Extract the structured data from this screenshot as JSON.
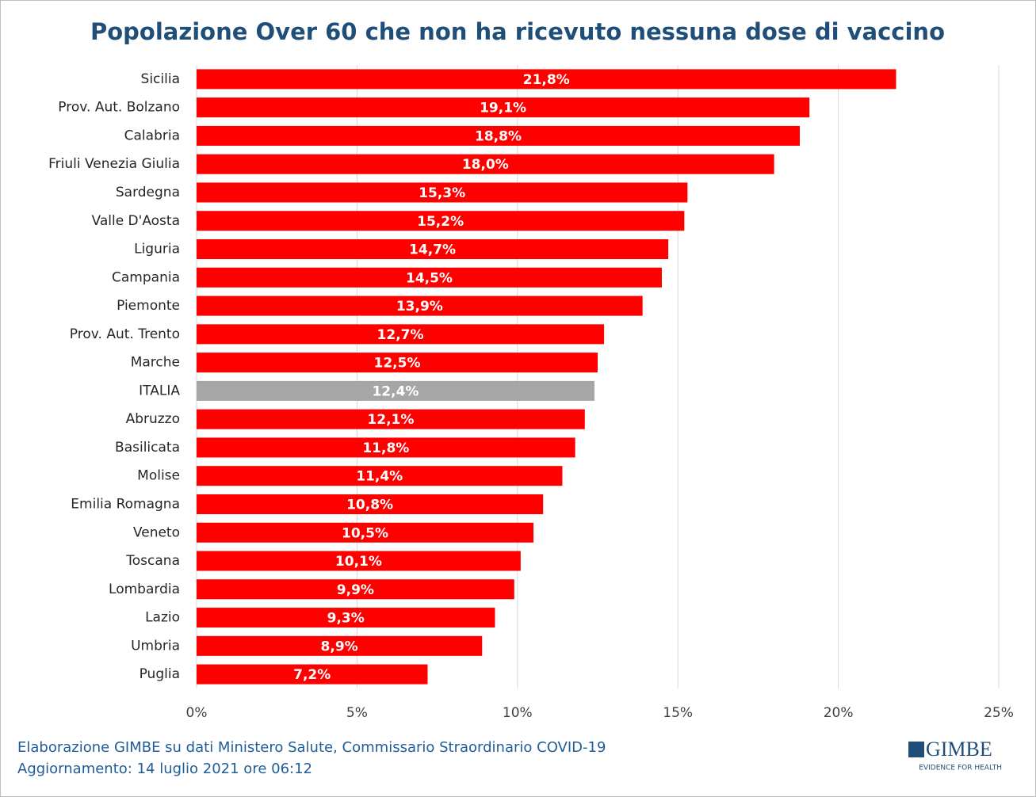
{
  "chart_data": {
    "type": "bar",
    "orientation": "horizontal",
    "title": "Popolazione Over 60 che non ha ricevuto nessuna dose di vaccino",
    "categories": [
      "Sicilia",
      "Prov. Aut. Bolzano",
      "Calabria",
      "Friuli Venezia Giulia",
      "Sardegna",
      "Valle D'Aosta",
      "Liguria",
      "Campania",
      "Piemonte",
      "Prov. Aut. Trento",
      "Marche",
      "ITALIA",
      "Abruzzo",
      "Basilicata",
      "Molise",
      "Emilia Romagna",
      "Veneto",
      "Toscana",
      "Lombardia",
      "Lazio",
      "Umbria",
      "Puglia"
    ],
    "values": [
      21.8,
      19.1,
      18.8,
      18.0,
      15.3,
      15.2,
      14.7,
      14.5,
      13.9,
      12.7,
      12.5,
      12.4,
      12.1,
      11.8,
      11.4,
      10.8,
      10.5,
      10.1,
      9.9,
      9.3,
      8.9,
      7.2
    ],
    "value_labels": [
      "21,8%",
      "19,1%",
      "18,8%",
      "18,0%",
      "15,3%",
      "15,2%",
      "14,7%",
      "14,5%",
      "13,9%",
      "12,7%",
      "12,5%",
      "12,4%",
      "12,1%",
      "11,8%",
      "11,4%",
      "10,8%",
      "10,5%",
      "10,1%",
      "9,9%",
      "9,3%",
      "8,9%",
      "7,2%"
    ],
    "colors": [
      "#ff0000",
      "#ff0000",
      "#ff0000",
      "#ff0000",
      "#ff0000",
      "#ff0000",
      "#ff0000",
      "#ff0000",
      "#ff0000",
      "#ff0000",
      "#ff0000",
      "#a6a6a6",
      "#ff0000",
      "#ff0000",
      "#ff0000",
      "#ff0000",
      "#ff0000",
      "#ff0000",
      "#ff0000",
      "#ff0000",
      "#ff0000",
      "#ff0000"
    ],
    "xlim": [
      0,
      25
    ],
    "xticks": [
      {
        "value": 0,
        "label": "0%"
      },
      {
        "value": 5,
        "label": "5%"
      },
      {
        "value": 10,
        "label": "10%"
      },
      {
        "value": 15,
        "label": "15%"
      },
      {
        "value": 20,
        "label": "20%"
      },
      {
        "value": 25,
        "label": "25%"
      }
    ],
    "grid": true
  },
  "footer": {
    "source": "Elaborazione GIMBE su dati Ministero Salute, Commissario Straordinario COVID-19",
    "updated": "Aggiornamento: 14 luglio 2021 ore 06:12"
  },
  "logo": {
    "name": "GIMBE",
    "tagline": "EVIDENCE FOR HEALTH"
  }
}
